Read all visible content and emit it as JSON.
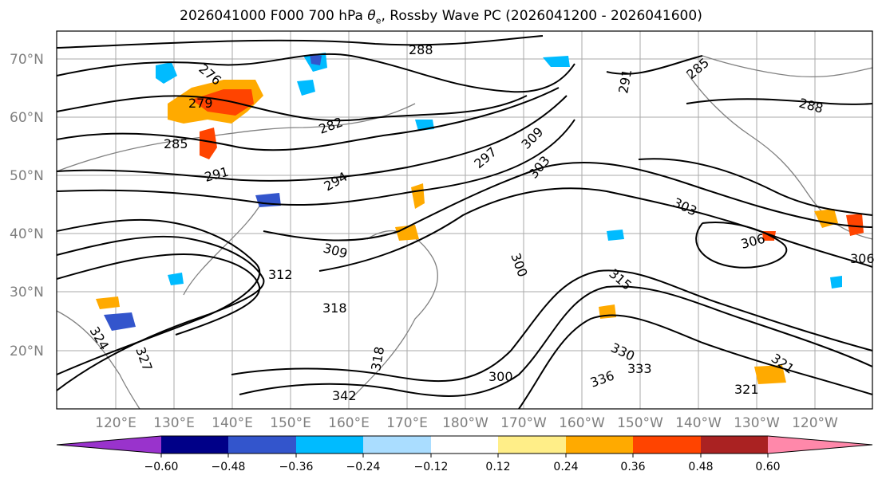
{
  "title": {
    "prefix": "2026041000 F000 700 hPa ",
    "theta": "θ",
    "sub": "e",
    "suffix": ", Rossby Wave PC (2026041200 - 2026041600)"
  },
  "latitudes": [
    "20°N",
    "30°N",
    "40°N",
    "50°N",
    "60°N",
    "70°N"
  ],
  "longitudes": [
    "120°E",
    "130°E",
    "140°E",
    "150°E",
    "160°E",
    "170°E",
    "180°W",
    "170°W",
    "160°W",
    "150°W",
    "140°W",
    "130°W",
    "120°W"
  ],
  "colorbar": {
    "ticks": [
      "−0.60",
      "−0.48",
      "−0.36",
      "−0.24",
      "−0.12",
      "0.12",
      "0.24",
      "0.36",
      "0.48",
      "0.60"
    ],
    "colors": [
      "#9933cc",
      "#000088",
      "#3355cc",
      "#00bbff",
      "#aaddff",
      "#ffffff",
      "#ffee88",
      "#ffaa00",
      "#ff4400",
      "#aa2222",
      "#ff88aa"
    ]
  },
  "contour_labels": [
    "288",
    "276",
    "279",
    "282",
    "285",
    "291",
    "294",
    "297",
    "300",
    "303",
    "306",
    "309",
    "312",
    "315",
    "318",
    "321",
    "324",
    "327",
    "330",
    "333",
    "336",
    "342",
    "291",
    "285",
    "288",
    "303",
    "306",
    "309",
    "300",
    "318",
    "321"
  ]
}
